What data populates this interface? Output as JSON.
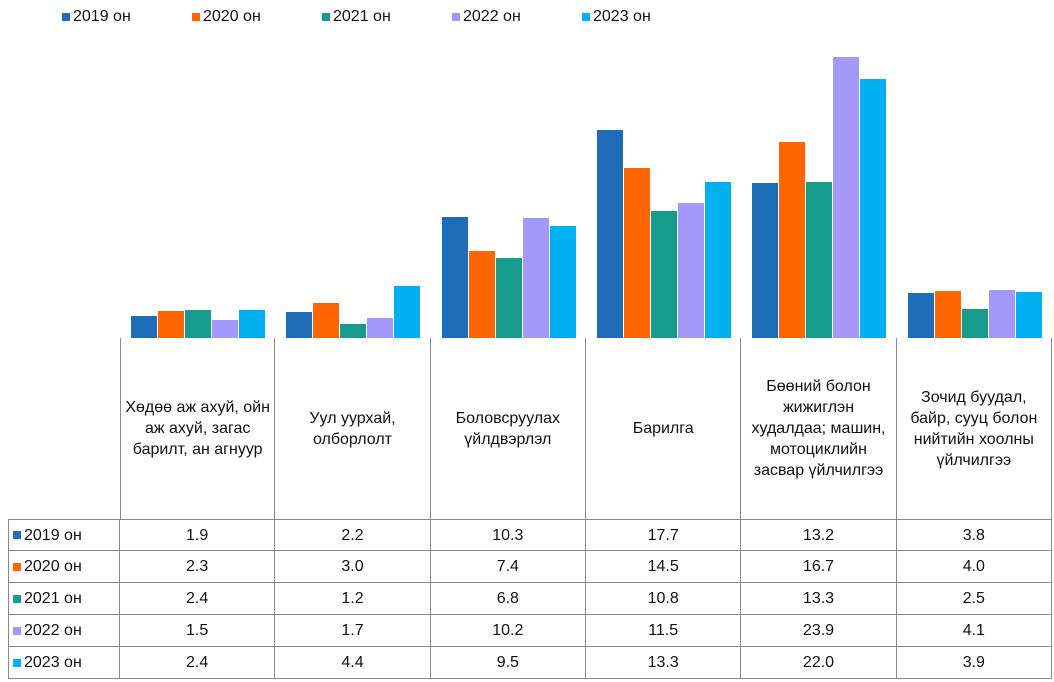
{
  "chart_data": {
    "type": "bar",
    "categories": [
      "Хөдөө аж ахуй, ойн аж ахуй, загас барилт, ан агнуур",
      "Уул уурхай, олборлолт",
      "Боловсруулах үйлдвэрлэл",
      "Барилга",
      "Бөөний болон жижиглэн худалдаа; машин, мотоциклийн засвар үйлчилгээ",
      "Зочид буудал, байр, сууц болон нийтийн хоолны үйлчилгээ"
    ],
    "series": [
      {
        "name": "2019 он",
        "color": "#1f6cb8",
        "values": [
          1.9,
          2.2,
          10.3,
          17.7,
          13.2,
          3.8
        ],
        "value_labels": [
          "1.9",
          "2.2",
          "10.3",
          "17.7",
          "13.2",
          "3.8"
        ]
      },
      {
        "name": "2020 он",
        "color": "#ff6600",
        "values": [
          2.3,
          3.0,
          7.4,
          14.5,
          16.7,
          4.0
        ],
        "value_labels": [
          "2.3",
          "3.0",
          "7.4",
          "14.5",
          "16.7",
          "4.0"
        ]
      },
      {
        "name": "2021 он",
        "color": "#169b8c",
        "values": [
          2.4,
          1.2,
          6.8,
          10.8,
          13.3,
          2.5
        ],
        "value_labels": [
          "2.4",
          "1.2",
          "6.8",
          "10.8",
          "13.3",
          "2.5"
        ]
      },
      {
        "name": "2022 он",
        "color": "#a499fb",
        "values": [
          1.5,
          1.7,
          10.2,
          11.5,
          23.9,
          4.1
        ],
        "value_labels": [
          "1.5",
          "1.7",
          "10.2",
          "11.5",
          "23.9",
          "4.1"
        ]
      },
      {
        "name": "2023 он",
        "color": "#00b0f0",
        "values": [
          2.4,
          4.4,
          9.5,
          13.3,
          22.0,
          3.9
        ],
        "value_labels": [
          "2.4",
          "4.4",
          "9.5",
          "13.3",
          "22.0",
          "3.9"
        ]
      }
    ],
    "legend": "top"
  }
}
